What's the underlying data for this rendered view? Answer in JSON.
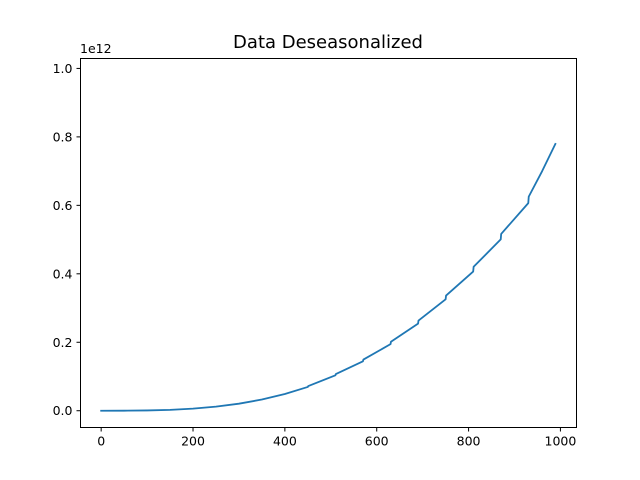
{
  "chart_data": {
    "type": "line",
    "title": "Data Deseasonalized",
    "xlabel": "",
    "ylabel": "",
    "offset_label": "1e12",
    "xlim": [
      -45,
      1035
    ],
    "ylim": [
      -0.049,
      1.029
    ],
    "xticks": [
      0,
      200,
      400,
      600,
      800,
      1000
    ],
    "xtick_labels": [
      "0",
      "200",
      "400",
      "600",
      "800",
      "1000"
    ],
    "yticks": [
      0.0,
      0.2,
      0.4,
      0.6,
      0.8,
      1.0
    ],
    "ytick_labels": [
      "0.0",
      "0.2",
      "0.4",
      "0.6",
      "0.8",
      "1.0"
    ],
    "grid": false,
    "series_color": "#1f77b4",
    "series": [
      {
        "x": [
          0,
          50,
          100,
          150,
          200,
          250,
          300,
          350,
          400,
          450,
          451,
          510,
          511,
          570,
          571,
          630,
          631,
          690,
          691,
          750,
          751,
          810,
          811,
          870,
          871,
          930,
          931,
          960,
          989
        ],
        "values": [
          0.0,
          0.0001,
          0.0008,
          0.0026,
          0.0061,
          0.0119,
          0.0206,
          0.0327,
          0.0488,
          0.0695,
          0.072,
          0.1035,
          0.107,
          0.1445,
          0.1495,
          0.1945,
          0.2015,
          0.2545,
          0.2635,
          0.3255,
          0.3365,
          0.4065,
          0.4205,
          0.5005,
          0.5165,
          0.6065,
          0.6255,
          0.6995,
          0.7795
        ]
      }
    ]
  }
}
